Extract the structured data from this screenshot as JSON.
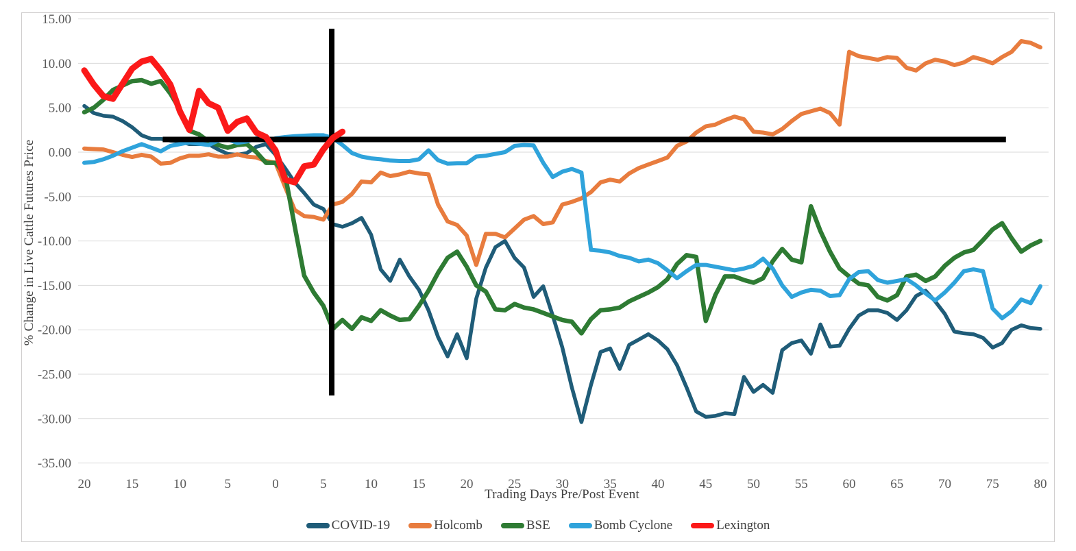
{
  "chart_data": {
    "type": "line",
    "title": "",
    "xlabel": "Trading Days Pre/Post Event",
    "ylabel": "% Change in Live Cattle Futures Price",
    "x_range": [
      -20,
      80
    ],
    "ylim": [
      -35,
      15
    ],
    "grid": "horizontal",
    "legend_position": "bottom",
    "colors": {
      "grid": "#dadada",
      "frame_border": "#d0cece",
      "tick_text": "#595959",
      "axis_title_text": "#3f3f3f",
      "legend_text": "#404040",
      "annotation": "#000000"
    },
    "y_ticks": [
      {
        "value": 15,
        "label": "15.00"
      },
      {
        "value": 10,
        "label": "10.00"
      },
      {
        "value": 5,
        "label": "5.00"
      },
      {
        "value": 0,
        "label": "0.00"
      },
      {
        "value": -5,
        "label": "-5.00"
      },
      {
        "value": -10,
        "label": "-10.00"
      },
      {
        "value": -15,
        "label": "-15.00"
      },
      {
        "value": -20,
        "label": "-20.00"
      },
      {
        "value": -25,
        "label": "-25.00"
      },
      {
        "value": -30,
        "label": "-30.00"
      },
      {
        "value": -35,
        "label": "-35.00"
      }
    ],
    "x_ticks": [
      {
        "day": -20,
        "label": "20"
      },
      {
        "day": -15,
        "label": "15"
      },
      {
        "day": -10,
        "label": "10"
      },
      {
        "day": -5,
        "label": "5"
      },
      {
        "day": 0,
        "label": "0"
      },
      {
        "day": 5,
        "label": "5"
      },
      {
        "day": 10,
        "label": "10"
      },
      {
        "day": 15,
        "label": "15"
      },
      {
        "day": 20,
        "label": "20"
      },
      {
        "day": 25,
        "label": "25"
      },
      {
        "day": 30,
        "label": "30"
      },
      {
        "day": 35,
        "label": "35"
      },
      {
        "day": 40,
        "label": "40"
      },
      {
        "day": 45,
        "label": "45"
      },
      {
        "day": 50,
        "label": "50"
      },
      {
        "day": 55,
        "label": "55"
      },
      {
        "day": 60,
        "label": "60"
      },
      {
        "day": 65,
        "label": "65"
      },
      {
        "day": 70,
        "label": "70"
      },
      {
        "day": 75,
        "label": "75"
      },
      {
        "day": 80,
        "label": "80"
      }
    ],
    "x": [
      -20,
      -19,
      -18,
      -17,
      -16,
      -15,
      -14,
      -13,
      -12,
      -11,
      -10,
      -9,
      -8,
      -7,
      -6,
      -5,
      -4,
      -3,
      -2,
      -1,
      0,
      1,
      2,
      3,
      4,
      5,
      6,
      7,
      8,
      9,
      10,
      11,
      12,
      13,
      14,
      15,
      16,
      17,
      18,
      19,
      20,
      21,
      22,
      23,
      24,
      25,
      26,
      27,
      28,
      29,
      30,
      31,
      32,
      33,
      34,
      35,
      36,
      37,
      38,
      39,
      40,
      41,
      42,
      43,
      44,
      45,
      46,
      47,
      48,
      49,
      50,
      51,
      52,
      53,
      54,
      55,
      56,
      57,
      58,
      59,
      60,
      61,
      62,
      63,
      64,
      65,
      66,
      67,
      68,
      69,
      70,
      71,
      72,
      73,
      74,
      75,
      76,
      77,
      78,
      79,
      80
    ],
    "series": [
      {
        "name": "COVID-19",
        "color": "#1f5c78",
        "line_width": 5.5,
        "values": [
          5.2,
          4.4,
          4.1,
          4.0,
          3.5,
          2.8,
          1.9,
          1.5,
          1.5,
          1.3,
          1.2,
          0.9,
          0.9,
          0.9,
          0.3,
          -0.2,
          -0.3,
          -0.1,
          0.6,
          0.9,
          -0.3,
          -1.8,
          -3.4,
          -4.6,
          -5.9,
          -6.4,
          -8.1,
          -8.4,
          -8.0,
          -7.4,
          -9.3,
          -13.2,
          -14.5,
          -12.1,
          -14.0,
          -15.5,
          -17.8,
          -20.8,
          -23.0,
          -20.5,
          -23.2,
          -16.5,
          -13.0,
          -10.7,
          -10.0,
          -11.9,
          -13.0,
          -16.3,
          -15.1,
          -18.4,
          -22.0,
          -26.5,
          -30.4,
          -26.2,
          -22.5,
          -22.1,
          -24.4,
          -21.7,
          -21.1,
          -20.5,
          -21.2,
          -22.2,
          -24.0,
          -26.5,
          -29.2,
          -29.8,
          -29.7,
          -29.4,
          -29.5,
          -25.3,
          -27.0,
          -26.2,
          -27.1,
          -22.3,
          -21.5,
          -21.2,
          -22.7,
          -19.4,
          -21.9,
          -21.8,
          -19.9,
          -18.4,
          -17.8,
          -17.8,
          -18.1,
          -18.9,
          -17.8,
          -16.2,
          -15.6,
          -16.8,
          -18.2,
          -20.2,
          -20.4,
          -20.5,
          -20.9,
          -22.0,
          -21.5,
          -20.0,
          -19.5,
          -19.8,
          -19.9
        ]
      },
      {
        "name": "Holcomb",
        "color": "#e87c3e",
        "line_width": 6,
        "values": [
          0.4,
          0.35,
          0.3,
          0.0,
          -0.3,
          -0.55,
          -0.3,
          -0.5,
          -1.3,
          -1.2,
          -0.7,
          -0.4,
          -0.4,
          -0.25,
          -0.5,
          -0.5,
          -0.25,
          -0.5,
          -0.6,
          -1.0,
          -1.2,
          -3.9,
          -6.5,
          -7.2,
          -7.3,
          -7.6,
          -5.9,
          -5.6,
          -4.7,
          -3.3,
          -3.4,
          -2.3,
          -2.7,
          -2.5,
          -2.2,
          -2.4,
          -2.5,
          -5.9,
          -7.8,
          -8.2,
          -9.4,
          -12.7,
          -9.2,
          -9.2,
          -9.6,
          -8.6,
          -7.6,
          -7.2,
          -8.1,
          -7.9,
          -5.9,
          -5.6,
          -5.2,
          -4.5,
          -3.4,
          -3.1,
          -3.3,
          -2.4,
          -1.8,
          -1.4,
          -1.0,
          -0.6,
          0.7,
          1.2,
          2.2,
          2.9,
          3.1,
          3.6,
          4.0,
          3.7,
          2.3,
          2.2,
          2.0,
          2.6,
          3.5,
          4.3,
          4.6,
          4.9,
          4.4,
          3.1,
          11.3,
          10.8,
          10.6,
          10.4,
          10.7,
          10.6,
          9.5,
          9.2,
          10.0,
          10.4,
          10.2,
          9.8,
          10.1,
          10.7,
          10.4,
          10.0,
          10.7,
          11.3,
          12.5,
          12.3,
          11.8
        ]
      },
      {
        "name": "BSE",
        "color": "#2e7b33",
        "line_width": 6.5,
        "values": [
          4.5,
          5.0,
          5.9,
          7.0,
          7.5,
          8.0,
          8.1,
          7.7,
          8.0,
          6.6,
          4.8,
          2.4,
          2.0,
          1.2,
          0.8,
          0.5,
          0.8,
          0.9,
          0.0,
          -1.2,
          -1.2,
          -2.5,
          -8.3,
          -13.9,
          -15.8,
          -17.3,
          -19.9,
          -18.9,
          -19.9,
          -18.6,
          -19.0,
          -17.8,
          -18.4,
          -18.9,
          -18.8,
          -17.3,
          -15.6,
          -13.6,
          -11.9,
          -11.2,
          -12.9,
          -15.0,
          -15.7,
          -17.7,
          -17.8,
          -17.1,
          -17.5,
          -17.7,
          -18.1,
          -18.5,
          -18.9,
          -19.1,
          -20.4,
          -18.8,
          -17.8,
          -17.7,
          -17.5,
          -16.8,
          -16.3,
          -15.8,
          -15.2,
          -14.3,
          -12.6,
          -11.6,
          -11.8,
          -19.0,
          -16.1,
          -14.0,
          -14.0,
          -14.4,
          -14.7,
          -14.2,
          -12.3,
          -10.9,
          -12.1,
          -12.4,
          -6.1,
          -8.9,
          -11.2,
          -13.1,
          -14.0,
          -14.8,
          -15.0,
          -16.3,
          -16.7,
          -16.1,
          -14.0,
          -13.8,
          -14.5,
          -14.0,
          -12.8,
          -11.9,
          -11.3,
          -11.0,
          -9.9,
          -8.7,
          -8.0,
          -9.7,
          -11.2,
          -10.5,
          -10.0
        ]
      },
      {
        "name": "Bomb Cyclone",
        "color": "#2fa3db",
        "line_width": 6,
        "values": [
          -1.2,
          -1.1,
          -0.8,
          -0.4,
          0.1,
          0.5,
          0.9,
          0.5,
          0.1,
          0.7,
          0.9,
          1.1,
          0.95,
          0.8,
          1.3,
          1.45,
          1.05,
          1.2,
          1.55,
          1.3,
          1.55,
          1.7,
          1.8,
          1.85,
          1.9,
          1.9,
          1.6,
          0.8,
          -0.1,
          -0.5,
          -0.7,
          -0.8,
          -0.95,
          -1.0,
          -1.0,
          -0.8,
          0.2,
          -0.9,
          -1.3,
          -1.25,
          -1.25,
          -0.5,
          -0.4,
          -0.2,
          0.0,
          0.7,
          0.8,
          0.75,
          -1.2,
          -2.8,
          -2.2,
          -1.9,
          -2.3,
          -11.0,
          -11.1,
          -11.3,
          -11.7,
          -11.9,
          -12.3,
          -12.1,
          -12.5,
          -13.3,
          -14.2,
          -13.4,
          -12.7,
          -12.7,
          -12.9,
          -13.1,
          -13.3,
          -13.1,
          -12.8,
          -12.0,
          -13.1,
          -15.0,
          -16.3,
          -15.8,
          -15.5,
          -15.6,
          -16.2,
          -16.1,
          -14.3,
          -13.5,
          -13.4,
          -14.4,
          -14.7,
          -14.5,
          -14.3,
          -15.0,
          -15.9,
          -16.7,
          -15.8,
          -14.7,
          -13.4,
          -13.2,
          -13.4,
          -17.6,
          -18.7,
          -17.9,
          -16.6,
          -17.0,
          -15.1
        ]
      },
      {
        "name": "Lexington",
        "color": "#fb1919",
        "line_width": 9,
        "draw_above_annotations": true,
        "values": [
          9.2,
          7.6,
          6.3,
          6.0,
          7.7,
          9.4,
          10.2,
          10.5,
          9.2,
          7.6,
          4.6,
          2.5,
          6.9,
          5.5,
          5.0,
          2.4,
          3.4,
          3.8,
          2.2,
          1.7,
          0.2,
          -3.1,
          -3.4,
          -1.6,
          -1.4,
          0.3,
          1.6,
          2.3
        ]
      }
    ],
    "annotations": [
      {
        "type": "vline",
        "name": "event-day-marker",
        "day": 5.88,
        "value_from": 13.9,
        "value_to": -27.4,
        "color": "#000000",
        "width": 8
      },
      {
        "type": "hline",
        "name": "event-price-level-marker",
        "value": 1.43,
        "day_from": -11.8,
        "day_to": 76.4,
        "color": "#000000",
        "width": 8
      }
    ]
  }
}
